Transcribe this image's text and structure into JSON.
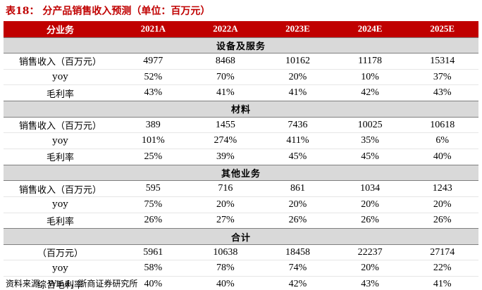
{
  "title": "表18： 分产品销售收入预测（单位：百万元）",
  "header": [
    "分业务",
    "2021A",
    "2022A",
    "2023E",
    "2024E",
    "2025E"
  ],
  "sections": [
    {
      "name": "设备及服务",
      "rows": [
        {
          "label": "销售收入（百万元）",
          "values": [
            "4977",
            "8468",
            "10162",
            "11178",
            "15314"
          ]
        },
        {
          "label": "yoy",
          "values": [
            "52%",
            "70%",
            "20%",
            "10%",
            "37%"
          ]
        },
        {
          "label": "毛利率",
          "values": [
            "43%",
            "41%",
            "41%",
            "42%",
            "43%"
          ]
        }
      ]
    },
    {
      "name": "材料",
      "rows": [
        {
          "label": "销售收入（百万元）",
          "values": [
            "389",
            "1455",
            "7436",
            "10025",
            "10618"
          ]
        },
        {
          "label": "yoy",
          "values": [
            "101%",
            "274%",
            "411%",
            "35%",
            "6%"
          ]
        },
        {
          "label": "毛利率",
          "values": [
            "25%",
            "39%",
            "45%",
            "45%",
            "40%"
          ]
        }
      ]
    },
    {
      "name": "其他业务",
      "rows": [
        {
          "label": "销售收入（百万元）",
          "values": [
            "595",
            "716",
            "861",
            "1034",
            "1243"
          ]
        },
        {
          "label": "yoy",
          "values": [
            "75%",
            "20%",
            "20%",
            "20%",
            "20%"
          ]
        },
        {
          "label": "毛利率",
          "values": [
            "26%",
            "27%",
            "26%",
            "26%",
            "26%"
          ]
        }
      ]
    },
    {
      "name": "合计",
      "rows": [
        {
          "label": "（百万元）",
          "values": [
            "5961",
            "10638",
            "18458",
            "22237",
            "27174"
          ]
        },
        {
          "label": "yoy",
          "values": [
            "58%",
            "78%",
            "74%",
            "20%",
            "22%"
          ]
        },
        {
          "label": "综合毛利率",
          "values": [
            "40%",
            "40%",
            "42%",
            "43%",
            "41%"
          ]
        }
      ]
    }
  ],
  "source": "资料来源：Wind，浙商证券研究所",
  "colors": {
    "header_bg": "#c00000",
    "section_bg": "#d9d9d9",
    "title": "#c00000"
  }
}
